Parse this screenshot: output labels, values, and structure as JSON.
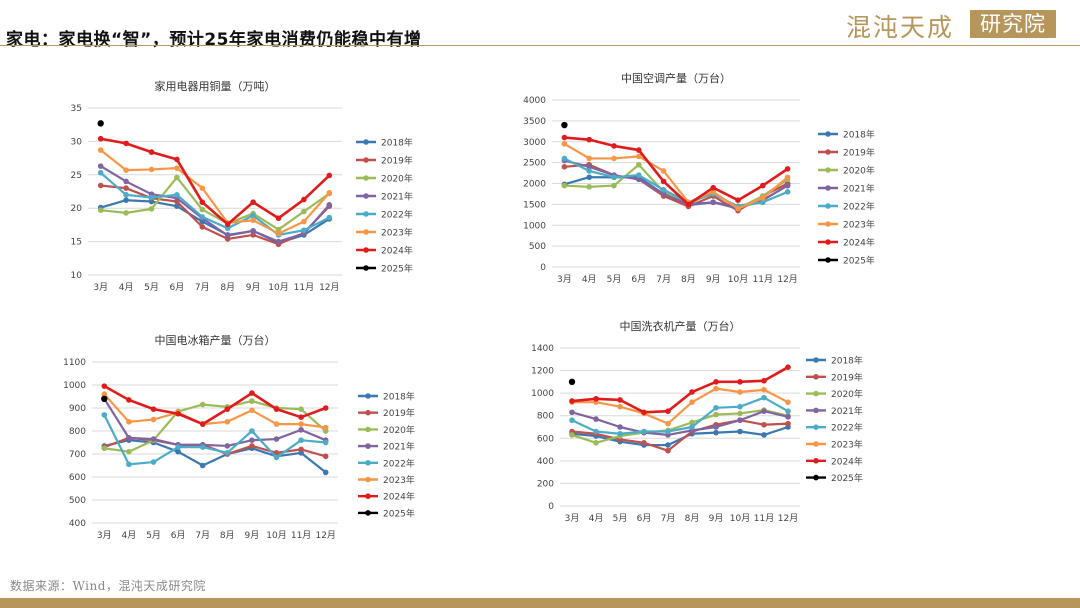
{
  "header": {
    "title": "家电：家电换“智”，预计25年家电消费仍能稳中有增",
    "logo_text": "混沌天成",
    "logo_box_text": "研究院"
  },
  "source": "数据来源：Wind，混沌天成研究院",
  "colors": {
    "2018年": "#3b78b0",
    "2019年": "#c0504d",
    "2020年": "#9bbb59",
    "2021年": "#8064a2",
    "2022年": "#4bacc6",
    "2023年": "#f79646",
    "2024年": "#e11b1b",
    "2025年": "#000000",
    "accent": "#b7965b"
  },
  "chart_data": [
    {
      "type": "line",
      "title": "家用电器用铜量（万吨）",
      "categories": [
        "3月",
        "4月",
        "5月",
        "6月",
        "7月",
        "8月",
        "9月",
        "10月",
        "11月",
        "12月"
      ],
      "ylim": [
        10,
        35
      ],
      "yticks": [
        10,
        15,
        20,
        25,
        30,
        35
      ],
      "grid": true,
      "legend_position": "right",
      "series": [
        {
          "name": "2018年",
          "values": [
            20.1,
            21.2,
            21.0,
            20.3,
            18.0,
            16.0,
            16.6,
            14.8,
            16.0,
            18.4
          ]
        },
        {
          "name": "2019年",
          "values": [
            23.4,
            23.0,
            21.5,
            21.0,
            17.2,
            15.4,
            16.0,
            14.6,
            16.3,
            20.3
          ]
        },
        {
          "name": "2020年",
          "values": [
            19.7,
            19.3,
            19.9,
            24.6,
            19.8,
            17.7,
            19.2,
            16.8,
            19.5,
            22.2
          ]
        },
        {
          "name": "2021年",
          "values": [
            26.3,
            24.0,
            22.1,
            21.5,
            18.5,
            15.9,
            16.6,
            15.0,
            16.2,
            20.5
          ]
        },
        {
          "name": "2022年",
          "values": [
            25.3,
            22.0,
            21.6,
            22.0,
            18.7,
            17.0,
            18.9,
            16.0,
            16.7,
            18.6
          ]
        },
        {
          "name": "2023年",
          "values": [
            28.7,
            25.7,
            25.8,
            26.0,
            23.0,
            17.8,
            18.2,
            16.2,
            18.0,
            22.3
          ]
        },
        {
          "name": "2024年",
          "values": [
            30.4,
            29.7,
            28.4,
            27.3,
            20.9,
            17.6,
            20.9,
            18.5,
            21.3,
            24.9
          ]
        },
        {
          "name": "2025年",
          "values": [
            32.7,
            null,
            null,
            null,
            null,
            null,
            null,
            null,
            null,
            null
          ]
        }
      ]
    },
    {
      "type": "line",
      "title": "中国空调产量（万台）",
      "categories": [
        "3月",
        "4月",
        "5月",
        "6月",
        "7月",
        "8月",
        "9月",
        "10月",
        "11月",
        "12月"
      ],
      "ylim": [
        0,
        4000
      ],
      "yticks": [
        0,
        500,
        1000,
        1500,
        2000,
        2500,
        3000,
        3500,
        4000
      ],
      "grid": true,
      "legend_position": "right",
      "series": [
        {
          "name": "2018年",
          "values": [
            1980,
            2150,
            2150,
            2150,
            1750,
            1480,
            1550,
            1450,
            1600,
            1950
          ]
        },
        {
          "name": "2019年",
          "values": [
            2400,
            2450,
            2200,
            2100,
            1700,
            1450,
            1700,
            1350,
            1700,
            2000
          ]
        },
        {
          "name": "2020年",
          "values": [
            1950,
            1920,
            1950,
            2450,
            1800,
            1500,
            1800,
            1400,
            1700,
            2100
          ]
        },
        {
          "name": "2021年",
          "values": [
            2550,
            2400,
            2200,
            2100,
            1750,
            1500,
            1550,
            1400,
            1600,
            1950
          ]
        },
        {
          "name": "2022年",
          "values": [
            2600,
            2300,
            2150,
            2200,
            1850,
            1550,
            1750,
            1450,
            1550,
            1800
          ]
        },
        {
          "name": "2023年",
          "values": [
            2950,
            2600,
            2600,
            2650,
            2300,
            1550,
            1800,
            1400,
            1650,
            2150
          ]
        },
        {
          "name": "2024年",
          "values": [
            3100,
            3050,
            2900,
            2800,
            2050,
            1500,
            1900,
            1600,
            1950,
            2350
          ]
        },
        {
          "name": "2025年",
          "values": [
            3400,
            null,
            null,
            null,
            null,
            null,
            null,
            null,
            null,
            null
          ]
        }
      ]
    },
    {
      "type": "line",
      "title": "中国电冰箱产量（万台）",
      "categories": [
        "3月",
        "4月",
        "5月",
        "6月",
        "7月",
        "8月",
        "9月",
        "10月",
        "11月",
        "12月"
      ],
      "ylim": [
        400,
        1100
      ],
      "yticks": [
        400,
        500,
        600,
        700,
        800,
        900,
        1000,
        1100
      ],
      "grid": true,
      "legend_position": "right",
      "series": [
        {
          "name": "2018年",
          "values": [
            735,
            760,
            750,
            710,
            650,
            700,
            725,
            690,
            705,
            620
          ]
        },
        {
          "name": "2019年",
          "values": [
            730,
            770,
            760,
            740,
            740,
            700,
            735,
            705,
            720,
            690
          ]
        },
        {
          "name": "2020年",
          "values": [
            725,
            710,
            760,
            885,
            915,
            905,
            930,
            900,
            895,
            800
          ]
        },
        {
          "name": "2021年",
          "values": [
            940,
            770,
            765,
            740,
            740,
            735,
            760,
            765,
            805,
            760
          ]
        },
        {
          "name": "2022年",
          "values": [
            870,
            655,
            665,
            730,
            730,
            705,
            800,
            685,
            760,
            750
          ]
        },
        {
          "name": "2023年",
          "values": [
            960,
            840,
            850,
            880,
            830,
            840,
            890,
            830,
            830,
            815
          ]
        },
        {
          "name": "2024年",
          "values": [
            995,
            935,
            895,
            875,
            830,
            895,
            965,
            895,
            860,
            900
          ]
        },
        {
          "name": "2025年",
          "values": [
            940,
            null,
            null,
            null,
            null,
            null,
            null,
            null,
            null,
            null
          ]
        }
      ]
    },
    {
      "type": "line",
      "title": "中国洗衣机产量（万台）",
      "categories": [
        "3月",
        "4月",
        "5月",
        "6月",
        "7月",
        "8月",
        "9月",
        "10月",
        "11月",
        "12月"
      ],
      "ylim": [
        0,
        1400
      ],
      "yticks": [
        0,
        200,
        400,
        600,
        800,
        1000,
        1200,
        1400
      ],
      "grid": true,
      "legend_position": "right",
      "series": [
        {
          "name": "2018年",
          "values": [
            640,
            620,
            570,
            540,
            540,
            640,
            650,
            660,
            630,
            700
          ]
        },
        {
          "name": "2019年",
          "values": [
            660,
            640,
            590,
            560,
            490,
            660,
            720,
            760,
            720,
            730
          ]
        },
        {
          "name": "2020年",
          "values": [
            630,
            560,
            620,
            650,
            670,
            740,
            810,
            820,
            850,
            800
          ]
        },
        {
          "name": "2021年",
          "values": [
            830,
            770,
            700,
            650,
            630,
            670,
            700,
            760,
            840,
            790
          ]
        },
        {
          "name": "2022年",
          "values": [
            760,
            660,
            640,
            660,
            660,
            700,
            870,
            880,
            960,
            840
          ]
        },
        {
          "name": "2023年",
          "values": [
            920,
            920,
            880,
            820,
            730,
            920,
            1040,
            1010,
            1030,
            920
          ]
        },
        {
          "name": "2024年",
          "values": [
            930,
            950,
            940,
            830,
            840,
            1010,
            1100,
            1100,
            1110,
            1230
          ]
        },
        {
          "name": "2025年",
          "values": [
            1100,
            null,
            null,
            null,
            null,
            null,
            null,
            null,
            null,
            null
          ]
        }
      ]
    }
  ]
}
